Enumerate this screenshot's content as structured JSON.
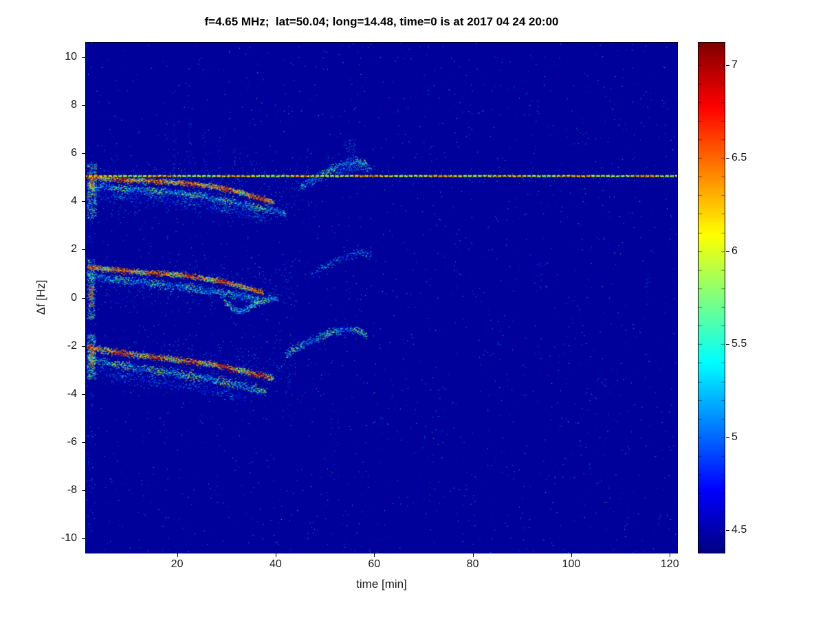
{
  "chart_data": {
    "type": "heatmap",
    "title": "f=4.65 MHz;  lat=50.04; long=14.48, time=0 is at 2017 04 24 20:00",
    "xlabel": "time [min]",
    "ylabel": "Δf [Hz]",
    "xlim": [
      1.5,
      121.5
    ],
    "ylim": [
      -10.6,
      10.6
    ],
    "xticks": [
      20,
      40,
      60,
      80,
      100,
      120
    ],
    "yticks": [
      10,
      8,
      6,
      4,
      2,
      0,
      -2,
      -4,
      -6,
      -8,
      -10
    ],
    "grid": false,
    "colormap": "jet",
    "colorbar": {
      "range": [
        4.38,
        7.12
      ],
      "ticks": [
        4.5,
        5,
        5.5,
        6,
        6.5,
        7
      ],
      "minor_tick_step": 0.1,
      "position": "right"
    },
    "background_value": 4.45,
    "carrier_line": {
      "y": 5.08,
      "x0": 1.5,
      "x1": 121.5,
      "value": 6.05,
      "dash_spacing_min": 1.0,
      "dash_color": "#141420"
    },
    "noise": {
      "count": 6500,
      "vmin": 4.48,
      "vmax": 5.75
    },
    "band_noise": [
      {
        "y_center": 4.4,
        "y_spread": 0.9,
        "x0": 1.6,
        "x1": 48,
        "count": 1100,
        "vmin": 4.55,
        "vmax": 5.6
      },
      {
        "y_center": 0.55,
        "y_spread": 0.75,
        "x0": 1.6,
        "x1": 44,
        "count": 900,
        "vmin": 4.55,
        "vmax": 5.6
      },
      {
        "y_center": -2.85,
        "y_spread": 0.85,
        "x0": 1.6,
        "x1": 44,
        "count": 1000,
        "vmin": 4.55,
        "vmax": 5.6
      }
    ],
    "columns": [
      {
        "x": 19.5,
        "width": 0.7,
        "y0": 3.8,
        "y1": 7.6,
        "count": 55,
        "vmin": 4.6,
        "vmax": 5.2
      },
      {
        "x": 22.5,
        "width": 0.7,
        "y0": 3.8,
        "y1": 7.3,
        "count": 50,
        "vmin": 4.6,
        "vmax": 5.2
      },
      {
        "x": 25.5,
        "width": 0.7,
        "y0": 3.9,
        "y1": 7.0,
        "count": 45,
        "vmin": 4.6,
        "vmax": 5.2
      },
      {
        "x": 28.5,
        "width": 0.7,
        "y0": 3.9,
        "y1": 6.6,
        "count": 40,
        "vmin": 4.6,
        "vmax": 5.2
      },
      {
        "x": 31.5,
        "width": 0.7,
        "y0": 3.8,
        "y1": 6.2,
        "count": 35,
        "vmin": 4.6,
        "vmax": 5.2
      },
      {
        "x": 55.0,
        "width": 2.5,
        "y0": 5.6,
        "y1": 6.6,
        "count": 60,
        "vmin": 4.7,
        "vmax": 5.5
      },
      {
        "x": 52.0,
        "width": 2.0,
        "y0": -7.6,
        "y1": -4.6,
        "count": 40,
        "vmin": 4.6,
        "vmax": 5.1
      },
      {
        "x": 93.5,
        "width": 1.2,
        "y0": 0.2,
        "y1": 1.6,
        "count": 25,
        "vmin": 4.6,
        "vmax": 5.2
      },
      {
        "x": 115.5,
        "width": 1.2,
        "y0": 0.0,
        "y1": 1.2,
        "count": 20,
        "vmin": 4.6,
        "vmax": 5.2
      }
    ],
    "patches": [
      {
        "x0": 1.7,
        "x1": 3.6,
        "y0": 3.3,
        "y1": 5.6,
        "count": 380,
        "value": 5.5,
        "vary": 0.7
      },
      {
        "x0": 1.7,
        "x1": 3.2,
        "y0": -0.9,
        "y1": 1.6,
        "count": 320,
        "value": 5.45,
        "vary": 0.65
      },
      {
        "x0": 1.7,
        "x1": 3.4,
        "y0": -3.4,
        "y1": -1.5,
        "count": 340,
        "value": 5.55,
        "vary": 0.7
      },
      {
        "x0": 2.0,
        "x1": 3.1,
        "y0": 4.4,
        "y1": 5.15,
        "count": 90,
        "value": 6.45,
        "vary": 0.55
      },
      {
        "x0": 2.0,
        "x1": 3.0,
        "y0": -0.45,
        "y1": 0.55,
        "count": 80,
        "value": 6.4,
        "vary": 0.55
      },
      {
        "x0": 2.0,
        "x1": 3.1,
        "y0": -2.75,
        "y1": -1.95,
        "count": 90,
        "value": 6.5,
        "vary": 0.5
      },
      {
        "x0": 1.6,
        "x1": 2.8,
        "y0": -9.9,
        "y1": 6.3,
        "count": 160,
        "value": 4.85,
        "vary": 0.35
      }
    ],
    "traces": [
      {
        "name": "upper-main",
        "points": [
          [
            1.8,
            5.02
          ],
          [
            6,
            4.95
          ],
          [
            12,
            4.88
          ],
          [
            18,
            4.82
          ],
          [
            24,
            4.72
          ],
          [
            28,
            4.6
          ],
          [
            31,
            4.47
          ],
          [
            34,
            4.3
          ],
          [
            37,
            4.12
          ],
          [
            39.5,
            3.98
          ]
        ],
        "value": 6.35,
        "vary": 0.75,
        "spread": 0.06,
        "density": 3
      },
      {
        "name": "upper-parallel",
        "points": [
          [
            1.8,
            4.68
          ],
          [
            8,
            4.55
          ],
          [
            16,
            4.44
          ],
          [
            24,
            4.27
          ],
          [
            30,
            4.05
          ],
          [
            35,
            3.82
          ],
          [
            39,
            3.62
          ],
          [
            42,
            3.5
          ]
        ],
        "value": 5.45,
        "vary": 0.5,
        "spread": 0.09,
        "density": 2
      },
      {
        "name": "upper-faint",
        "points": [
          [
            3,
            4.35
          ],
          [
            10,
            4.22
          ],
          [
            18,
            4.06
          ],
          [
            26,
            3.84
          ],
          [
            33,
            3.55
          ],
          [
            38,
            3.34
          ]
        ],
        "value": 5.0,
        "vary": 0.35,
        "spread": 0.13,
        "density": 1
      },
      {
        "name": "upper-blip-rise",
        "points": [
          [
            45,
            4.62
          ],
          [
            48,
            4.95
          ],
          [
            51,
            5.3
          ],
          [
            54,
            5.58
          ],
          [
            56.5,
            5.72
          ],
          [
            58.5,
            5.55
          ]
        ],
        "value": 5.35,
        "vary": 0.45,
        "spread": 0.1,
        "density": 2
      },
      {
        "name": "upper-blip-cluster",
        "points": [
          [
            52,
            5.12
          ],
          [
            55,
            5.32
          ],
          [
            57.5,
            5.44
          ],
          [
            59.5,
            5.3
          ]
        ],
        "value": 5.2,
        "vary": 0.35,
        "spread": 0.08,
        "density": 1
      },
      {
        "name": "mid-main",
        "points": [
          [
            1.8,
            1.27
          ],
          [
            6,
            1.18
          ],
          [
            12,
            1.08
          ],
          [
            18,
            1.0
          ],
          [
            22,
            0.92
          ],
          [
            26,
            0.8
          ],
          [
            29,
            0.68
          ],
          [
            32,
            0.52
          ],
          [
            35,
            0.35
          ],
          [
            37.5,
            0.22
          ]
        ],
        "value": 6.3,
        "vary": 0.7,
        "spread": 0.06,
        "density": 3
      },
      {
        "name": "mid-parallel",
        "points": [
          [
            1.8,
            0.9
          ],
          [
            8,
            0.74
          ],
          [
            16,
            0.58
          ],
          [
            24,
            0.38
          ],
          [
            30,
            0.17
          ],
          [
            34,
            0.02
          ],
          [
            36.5,
            -0.08
          ]
        ],
        "value": 5.35,
        "vary": 0.45,
        "spread": 0.1,
        "density": 2
      },
      {
        "name": "mid-hook",
        "points": [
          [
            29.5,
            -0.1
          ],
          [
            31,
            -0.42
          ],
          [
            32.5,
            -0.55
          ],
          [
            34.5,
            -0.42
          ],
          [
            36.5,
            -0.2
          ],
          [
            38.5,
            -0.05
          ],
          [
            40.5,
            0.02
          ]
        ],
        "value": 5.5,
        "vary": 0.4,
        "spread": 0.07,
        "density": 2
      },
      {
        "name": "mid-blip-arc",
        "points": [
          [
            47,
            0.95
          ],
          [
            50,
            1.3
          ],
          [
            52.5,
            1.6
          ],
          [
            55,
            1.82
          ],
          [
            57,
            1.9
          ],
          [
            59.5,
            1.75
          ]
        ],
        "value": 5.15,
        "vary": 0.4,
        "spread": 0.1,
        "density": 1
      },
      {
        "name": "lower-main",
        "points": [
          [
            1.8,
            -2.05
          ],
          [
            6,
            -2.2
          ],
          [
            12,
            -2.38
          ],
          [
            18,
            -2.52
          ],
          [
            24,
            -2.68
          ],
          [
            28,
            -2.8
          ],
          [
            31,
            -2.92
          ],
          [
            34,
            -3.08
          ],
          [
            37,
            -3.22
          ],
          [
            39.5,
            -3.35
          ]
        ],
        "value": 6.35,
        "vary": 0.75,
        "spread": 0.07,
        "density": 3
      },
      {
        "name": "lower-parallel",
        "points": [
          [
            1.8,
            -2.55
          ],
          [
            8,
            -2.78
          ],
          [
            14,
            -2.98
          ],
          [
            20,
            -3.15
          ],
          [
            26,
            -3.35
          ],
          [
            31,
            -3.55
          ],
          [
            35,
            -3.75
          ],
          [
            38,
            -3.9
          ]
        ],
        "value": 5.5,
        "vary": 0.55,
        "spread": 0.1,
        "density": 2
      },
      {
        "name": "lower-faint",
        "points": [
          [
            4,
            -3.1
          ],
          [
            12,
            -3.35
          ],
          [
            20,
            -3.6
          ],
          [
            28,
            -3.9
          ],
          [
            34,
            -4.15
          ]
        ],
        "value": 4.95,
        "vary": 0.3,
        "spread": 0.13,
        "density": 1
      },
      {
        "name": "lower-blip-arc",
        "points": [
          [
            42,
            -2.35
          ],
          [
            45,
            -2.0
          ],
          [
            48,
            -1.7
          ],
          [
            51,
            -1.45
          ],
          [
            53.5,
            -1.3
          ],
          [
            56,
            -1.32
          ],
          [
            58.5,
            -1.5
          ]
        ],
        "value": 5.35,
        "vary": 0.5,
        "spread": 0.09,
        "density": 2
      }
    ]
  }
}
